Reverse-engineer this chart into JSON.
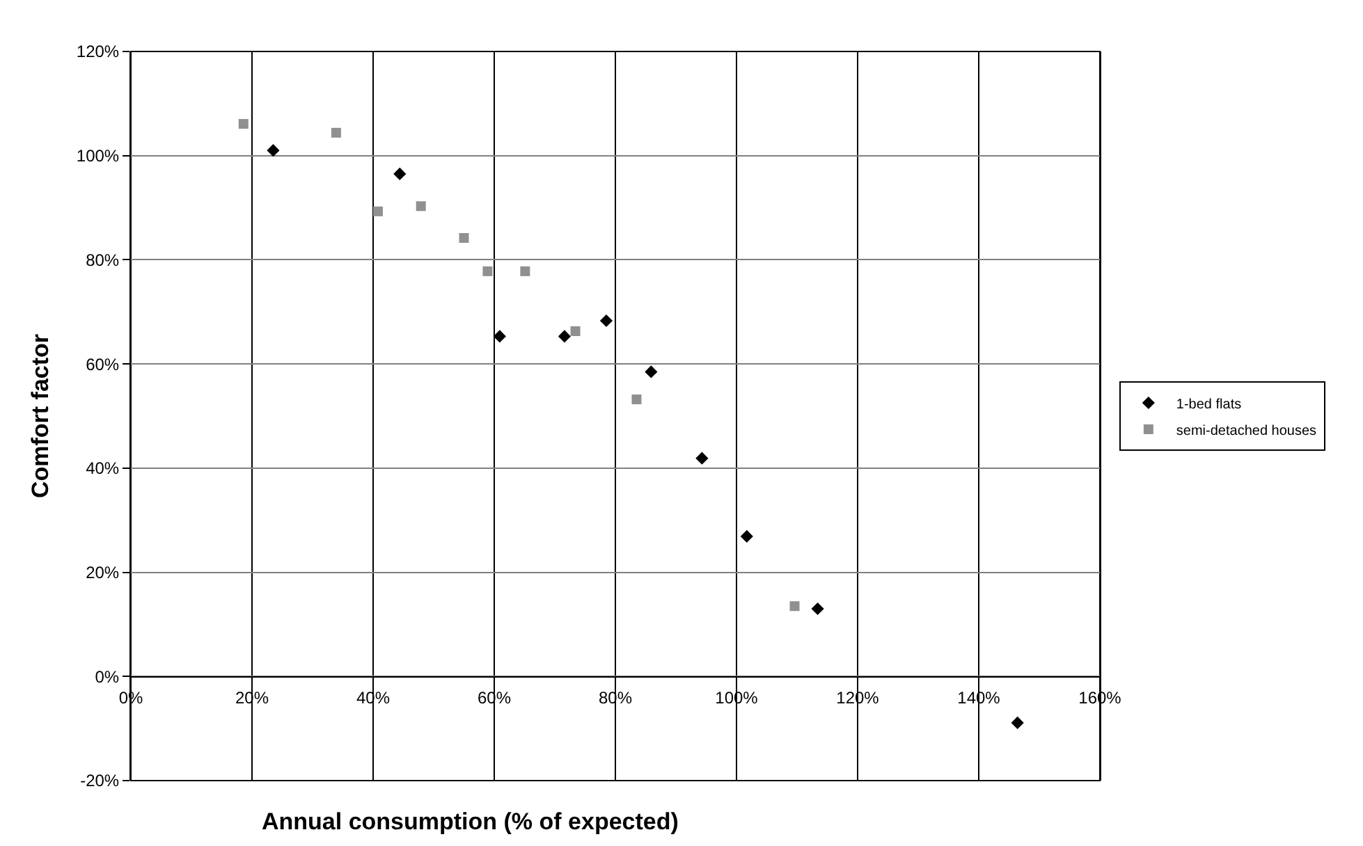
{
  "chart_data": {
    "type": "scatter",
    "xlabel": "Annual consumption (% of expected)",
    "ylabel": "Comfort factor",
    "xlim": [
      0,
      160
    ],
    "ylim": [
      -20,
      120
    ],
    "xticks": [
      {
        "value": 0,
        "label": "0%"
      },
      {
        "value": 20,
        "label": "20%"
      },
      {
        "value": 40,
        "label": "40%"
      },
      {
        "value": 60,
        "label": "60%"
      },
      {
        "value": 80,
        "label": "80%"
      },
      {
        "value": 100,
        "label": "100%"
      },
      {
        "value": 120,
        "label": "120%"
      },
      {
        "value": 140,
        "label": "140%"
      },
      {
        "value": 160,
        "label": "160%"
      }
    ],
    "yticks": [
      {
        "value": -20,
        "label": "-20%"
      },
      {
        "value": 0,
        "label": "0%"
      },
      {
        "value": 20,
        "label": "20%"
      },
      {
        "value": 40,
        "label": "40%"
      },
      {
        "value": 60,
        "label": "60%"
      },
      {
        "value": 80,
        "label": "80%"
      },
      {
        "value": 100,
        "label": "100%"
      },
      {
        "value": 120,
        "label": "120%"
      }
    ],
    "grid": true,
    "legend": "right",
    "series": [
      {
        "name": "1-bed flats",
        "color": "#000000",
        "marker": "diamond",
        "x": [
          23.5,
          44.4,
          60.9,
          71.6,
          78.5,
          85.9,
          94.3,
          101.7,
          113.4,
          146.4
        ],
        "values": [
          101,
          96.5,
          65.3,
          65.3,
          68.3,
          58.5,
          41.9,
          26.9,
          13,
          -8.9
        ]
      },
      {
        "name": "semi-detached houses",
        "color": "#909090",
        "marker": "square",
        "x": [
          18.6,
          33.9,
          40.8,
          47.9,
          55.0,
          58.9,
          65.1,
          73.4,
          83.5,
          109.6
        ],
        "values": [
          106.1,
          104.4,
          89.3,
          90.3,
          84.2,
          77.8,
          77.8,
          66.3,
          53.2,
          13.5
        ]
      }
    ]
  }
}
